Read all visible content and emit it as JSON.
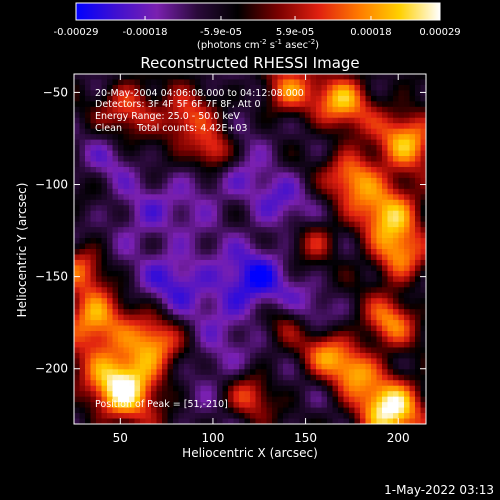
{
  "chart_data": {
    "type": "heatmap",
    "title": "Reconstructed RHESSI Image",
    "xlabel": "Heliocentric X (arcsec)",
    "ylabel": "Heliocentric Y (arcsec)",
    "xlim": [
      25,
      215
    ],
    "ylim": [
      -230,
      -40
    ],
    "x_ticks": [
      50,
      100,
      150,
      200
    ],
    "y_ticks": [
      -50,
      -100,
      -150,
      -200
    ],
    "colorbar": {
      "range": [
        -0.00029,
        0.00029
      ],
      "tick_values": [
        -0.00029,
        -0.00018,
        -5.9e-05,
        5.9e-05,
        0.00018,
        0.00029
      ],
      "tick_labels": [
        "-0.00029",
        "-0.00018",
        "-5.9e-05",
        "5.9e-05",
        "0.00018",
        "0.00029"
      ],
      "unit_main": "(photons cm",
      "unit_sup1": "-2",
      "unit_mid1": " s",
      "unit_sup2": "-1",
      "unit_mid2": " asec",
      "unit_sup3": "-2",
      "unit_end": ")",
      "colors": [
        "#0000ff",
        "#4010d0",
        "#7a20b0",
        "#2a0a3a",
        "#000000",
        "#7a0000",
        "#e02010",
        "#ff7a00",
        "#ffd000",
        "#ffffff"
      ]
    },
    "annotations": [
      "20-May-2004 04:06:08.000 to 04:12:08.000",
      "Detectors: 3F 4F 5F 6F 7F 8F, Att 0",
      "Energy Range: 25.0 - 50.0 keV",
      "Clean     Total counts: 4.42E+03"
    ],
    "peak_label": "Position of Peak = [51,-210]",
    "peak": [
      51,
      -210
    ],
    "hotspots": [
      {
        "x": 52,
        "y": -208,
        "amp": 1.0,
        "r": 14
      },
      {
        "x": 35,
        "y": -175,
        "amp": 0.75,
        "r": 12
      },
      {
        "x": 68,
        "y": -185,
        "amp": 0.55,
        "r": 10
      },
      {
        "x": 195,
        "y": -222,
        "amp": 0.95,
        "r": 13
      },
      {
        "x": 175,
        "y": -200,
        "amp": 0.6,
        "r": 9
      },
      {
        "x": 160,
        "y": -190,
        "amp": 0.55,
        "r": 9
      },
      {
        "x": 195,
        "y": -175,
        "amp": 0.6,
        "r": 10
      },
      {
        "x": 195,
        "y": -115,
        "amp": 0.75,
        "r": 13
      },
      {
        "x": 175,
        "y": -95,
        "amp": 0.65,
        "r": 10
      },
      {
        "x": 205,
        "y": -75,
        "amp": 0.7,
        "r": 12
      },
      {
        "x": 170,
        "y": -55,
        "amp": 0.7,
        "r": 11
      },
      {
        "x": 140,
        "y": -50,
        "amp": 0.6,
        "r": 10
      },
      {
        "x": 200,
        "y": -140,
        "amp": 0.6,
        "r": 10
      },
      {
        "x": 85,
        "y": -65,
        "amp": 0.6,
        "r": 10
      },
      {
        "x": 55,
        "y": -58,
        "amp": 0.55,
        "r": 10
      },
      {
        "x": 100,
        "y": -82,
        "amp": 0.75,
        "r": 8
      },
      {
        "x": 30,
        "y": -145,
        "amp": 0.5,
        "r": 9
      },
      {
        "x": 155,
        "y": -130,
        "amp": 0.4,
        "r": 8
      },
      {
        "x": 120,
        "y": -215,
        "amp": 0.45,
        "r": 9
      },
      {
        "x": 140,
        "y": -175,
        "amp": 0.35,
        "r": 8
      }
    ],
    "coldspots": [
      {
        "x": 80,
        "y": -150,
        "amp": 1.0,
        "r": 12
      },
      {
        "x": 110,
        "y": -160,
        "amp": 0.8,
        "r": 14
      },
      {
        "x": 125,
        "y": -150,
        "amp": 0.8,
        "r": 12
      },
      {
        "x": 95,
        "y": -100,
        "amp": 0.7,
        "r": 14
      },
      {
        "x": 135,
        "y": -110,
        "amp": 0.7,
        "r": 14
      },
      {
        "x": 60,
        "y": -120,
        "amp": 0.7,
        "r": 13
      },
      {
        "x": 150,
        "y": -170,
        "amp": 0.6,
        "r": 12
      },
      {
        "x": 100,
        "y": -200,
        "amp": 0.6,
        "r": 12
      },
      {
        "x": 120,
        "y": -75,
        "amp": 0.5,
        "r": 12
      },
      {
        "x": 45,
        "y": -85,
        "amp": 0.5,
        "r": 10
      }
    ]
  },
  "footer": {
    "timestamp": "1-May-2022 03:13"
  }
}
